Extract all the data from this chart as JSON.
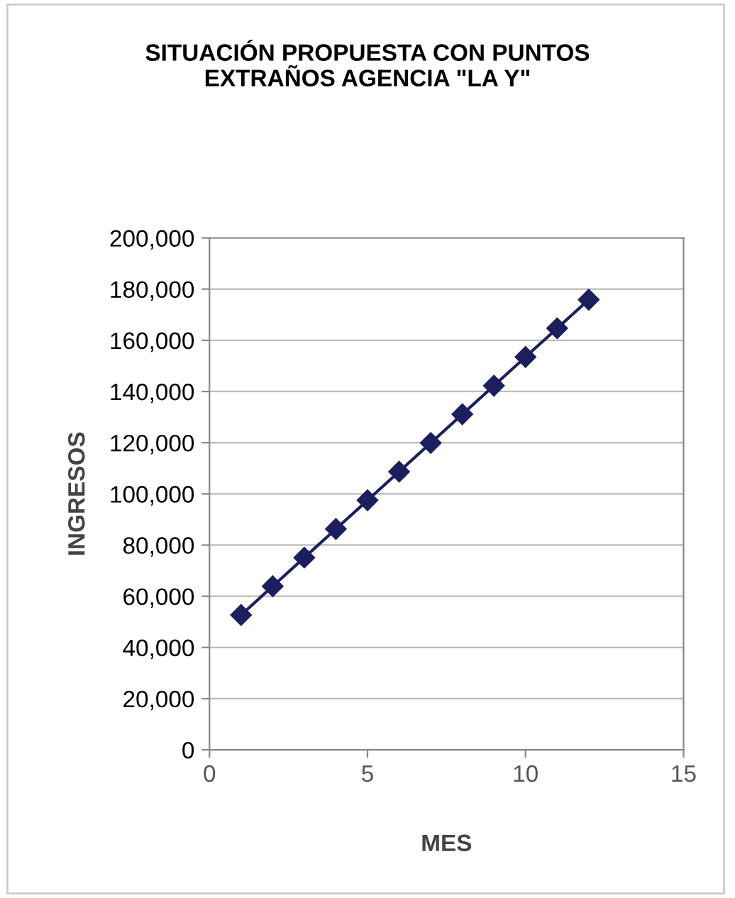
{
  "chart_data": {
    "type": "line",
    "title": "SITUACIÓN PROPUESTA CON PUNTOS\nEXTRAÑOS AGENCIA \"LA Y\"",
    "xlabel": "MES",
    "ylabel": "INGRESOS",
    "x": [
      1,
      2,
      3,
      4,
      5,
      6,
      7,
      8,
      9,
      10,
      11,
      12
    ],
    "series": [
      {
        "color": "#1c1f5e",
        "values": [
          52700,
          63900,
          75100,
          86300,
          97500,
          108700,
          119900,
          131100,
          142300,
          153500,
          164700,
          175900
        ]
      }
    ],
    "xlim": [
      0,
      15
    ],
    "xticks": [
      0,
      5,
      10,
      15
    ],
    "ylim": [
      0,
      200000
    ],
    "yticks": [
      {
        "value": 0,
        "label": "0"
      },
      {
        "value": 20000,
        "label": "20,000"
      },
      {
        "value": 40000,
        "label": "40,000"
      },
      {
        "value": 60000,
        "label": "60,000"
      },
      {
        "value": 80000,
        "label": "80,000"
      },
      {
        "value": 100000,
        "label": "100,000"
      },
      {
        "value": 120000,
        "label": "120,000"
      },
      {
        "value": 140000,
        "label": "140,000"
      },
      {
        "value": 160000,
        "label": "160,000"
      },
      {
        "value": 180000,
        "label": "180,000"
      },
      {
        "value": 200000,
        "label": "200,000"
      }
    ],
    "grid": "y",
    "marker": "diamond",
    "line_style": "solid"
  }
}
